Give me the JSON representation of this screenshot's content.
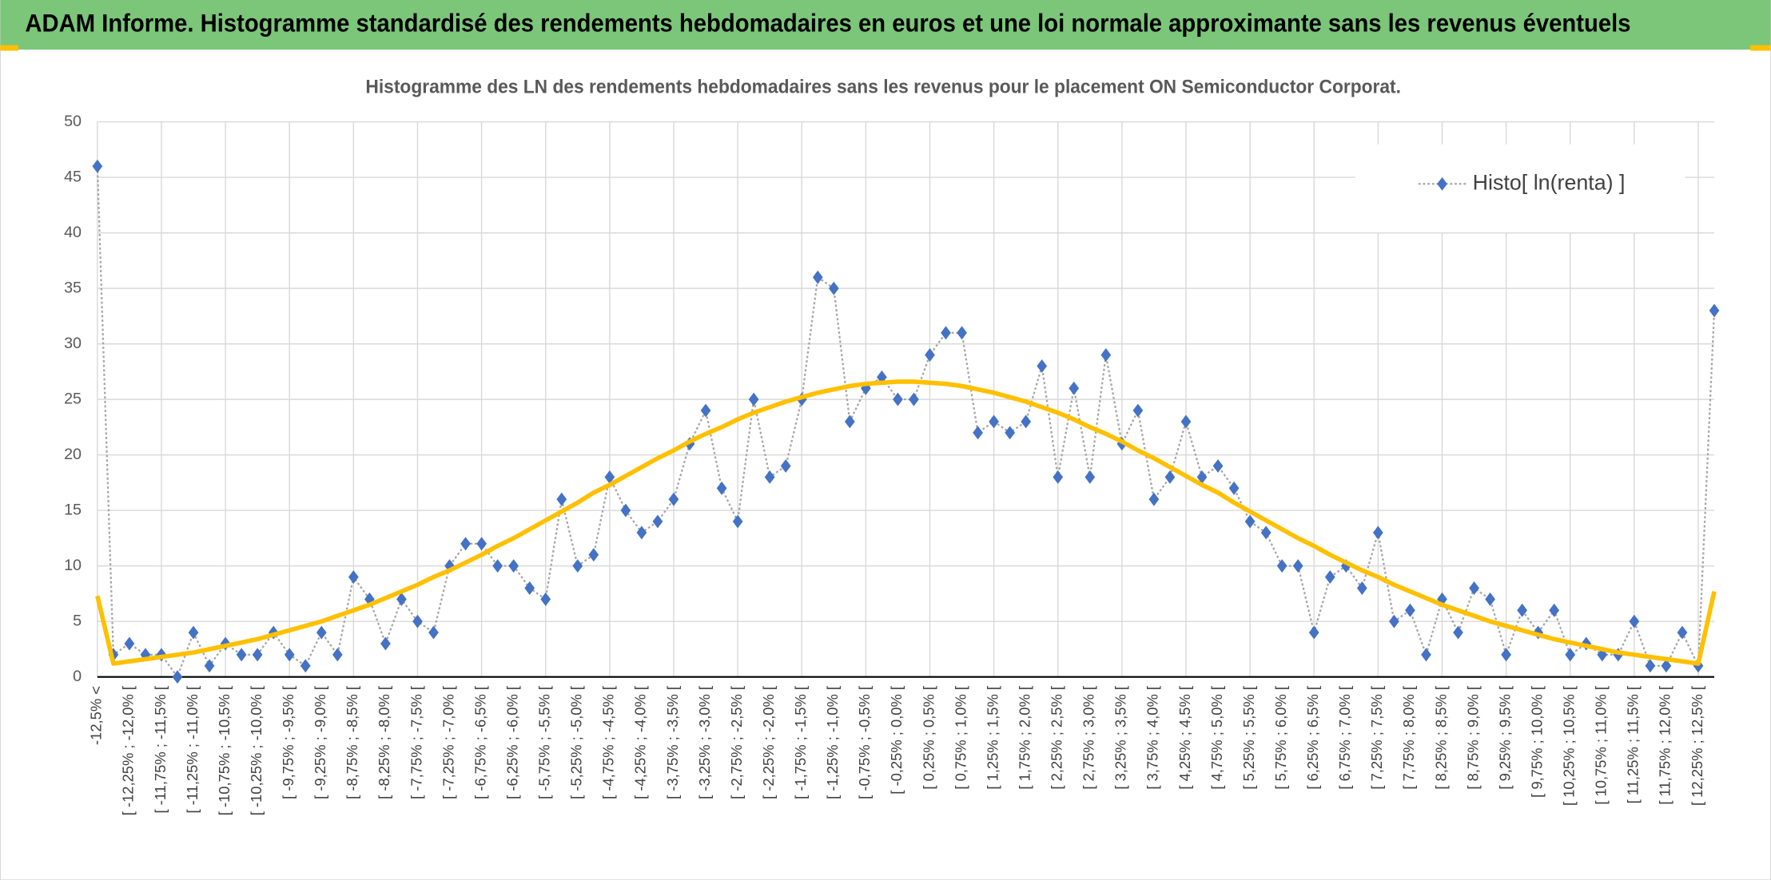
{
  "header": {
    "title": "ADAM Informe. Histogramme standardisé des rendements hebdomadaires en euros et une loi normale approximante sans les revenus éventuels"
  },
  "chart_data": {
    "type": "line",
    "title": "Histogramme des LN des rendements hebdomadaires sans les revenus pour le placement ON Semiconductor Corporat.",
    "categories": [
      "-12,5% <",
      null,
      "[ -12,25% ; -12,0% [",
      null,
      "[ -11,75% ; -11,5% [",
      null,
      "[ -11,25% ; -11,0% [",
      null,
      "[ -10,75% ; -10,5% [",
      null,
      "[ -10,25% ; -10,0% [",
      null,
      "[ -9,75% ; -9,5% [",
      null,
      "[ -9,25% ; -9,0% [",
      null,
      "[ -8,75% ; -8,5% [",
      null,
      "[ -8,25% ; -8,0% [",
      null,
      "[ -7,75% ; -7,5% [",
      null,
      "[ -7,25% ; -7,0% [",
      null,
      "[ -6,75% ; -6,5% [",
      null,
      "[ -6,25% ; -6,0% [",
      null,
      "[ -5,75% ; -5,5% [",
      null,
      "[ -5,25% ; -5,0% [",
      null,
      "[ -4,75% ; -4,5% [",
      null,
      "[ -4,25% ; -4,0% [",
      null,
      "[ -3,75% ; -3,5% [",
      null,
      "[ -3,25% ; -3,0% [",
      null,
      "[ -2,75% ; -2,5% [",
      null,
      "[ -2,25% ; -2,0% [",
      null,
      "[ -1,75% ; -1,5% [",
      null,
      "[ -1,25% ; -1,0% [",
      null,
      "[ -0,75% ; -0,5% [",
      null,
      "[ -0,25% ; 0,0% [",
      null,
      "[ 0,25% ; 0,5% [",
      null,
      "[ 0,75% ; 1,0% [",
      null,
      "[ 1,25% ; 1,5% [",
      null,
      "[ 1,75% ; 2,0% [",
      null,
      "[ 2,25% ; 2,5% [",
      null,
      "[ 2,75% ; 3,0% [",
      null,
      "[ 3,25% ; 3,5% [",
      null,
      "[ 3,75% ; 4,0% [",
      null,
      "[ 4,25% ; 4,5% [",
      null,
      "[ 4,75% ; 5,0% [",
      null,
      "[ 5,25% ; 5,5% [",
      null,
      "[ 5,75% ; 6,0% [",
      null,
      "[ 6,25% ; 6,5% [",
      null,
      "[ 6,75% ; 7,0% [",
      null,
      "[ 7,25% ; 7,5% [",
      null,
      "[ 7,75% ; 8,0% [",
      null,
      "[ 8,25% ; 8,5% [",
      null,
      "[ 8,75% ; 9,0% [",
      null,
      "[ 9,25% ; 9,5% [",
      null,
      "[ 9,75% ; 10,0% [",
      null,
      "[ 10,25% ; 10,5% [",
      null,
      "[ 10,75% ; 11,0% [",
      null,
      "[ 11,25% ; 11,5% [",
      null,
      "[ 11,75% ; 12,0% [",
      null,
      "[ 12,25% ; 12,5% [",
      null
    ],
    "series": [
      {
        "name": "Histo[ ln(renta) ]",
        "color": "#4472c4",
        "line_color": "#a6a6a6",
        "marker": "diamond",
        "values": [
          46,
          2,
          3,
          2,
          2,
          0,
          4,
          1,
          3,
          2,
          2,
          4,
          2,
          1,
          4,
          2,
          9,
          7,
          3,
          7,
          5,
          4,
          10,
          12,
          12,
          10,
          10,
          8,
          7,
          16,
          10,
          11,
          18,
          15,
          13,
          14,
          16,
          21,
          24,
          17,
          14,
          25,
          18,
          19,
          25,
          36,
          35,
          23,
          26,
          27,
          25,
          25,
          29,
          31,
          31,
          22,
          23,
          22,
          23,
          28,
          18,
          26,
          18,
          29,
          21,
          24,
          16,
          18,
          23,
          18,
          19,
          17,
          14,
          13,
          10,
          10,
          4,
          9,
          10,
          8,
          13,
          5,
          6,
          2,
          7,
          4,
          8,
          7,
          2,
          6,
          4,
          6,
          2,
          3,
          2,
          2,
          5,
          1,
          1,
          4,
          1,
          33
        ]
      },
      {
        "color": "#ffc000",
        "values": [
          7.3,
          1.2,
          1.4,
          1.6,
          1.8,
          2.0,
          2.2,
          2.5,
          2.8,
          3.1,
          3.4,
          3.8,
          4.2,
          4.6,
          5.0,
          5.5,
          6.0,
          6.5,
          7.1,
          7.7,
          8.3,
          9.0,
          9.6,
          10.3,
          11.0,
          11.8,
          12.5,
          13.3,
          14.1,
          14.9,
          15.7,
          16.6,
          17.3,
          18.1,
          18.9,
          19.7,
          20.4,
          21.2,
          21.9,
          22.5,
          23.2,
          23.8,
          24.3,
          24.8,
          25.2,
          25.6,
          25.9,
          26.2,
          26.4,
          26.5,
          26.6,
          26.6,
          26.5,
          26.4,
          26.2,
          25.9,
          25.6,
          25.2,
          24.8,
          24.3,
          23.8,
          23.2,
          22.5,
          21.9,
          21.2,
          20.4,
          19.7,
          18.9,
          18.1,
          17.3,
          16.6,
          15.7,
          14.9,
          14.1,
          13.3,
          12.5,
          11.8,
          11.0,
          10.3,
          9.6,
          9.0,
          8.3,
          7.7,
          7.1,
          6.5,
          6.0,
          5.5,
          5.0,
          4.6,
          4.2,
          3.8,
          3.4,
          3.1,
          2.8,
          2.5,
          2.2,
          2.0,
          1.8,
          1.6,
          1.4,
          1.2,
          7.7
        ]
      }
    ],
    "ylim": [
      0,
      50
    ],
    "yticks": [
      0,
      5,
      10,
      15,
      20,
      25,
      30,
      35,
      40,
      45,
      50
    ],
    "grid": true,
    "legend": "upper right"
  }
}
